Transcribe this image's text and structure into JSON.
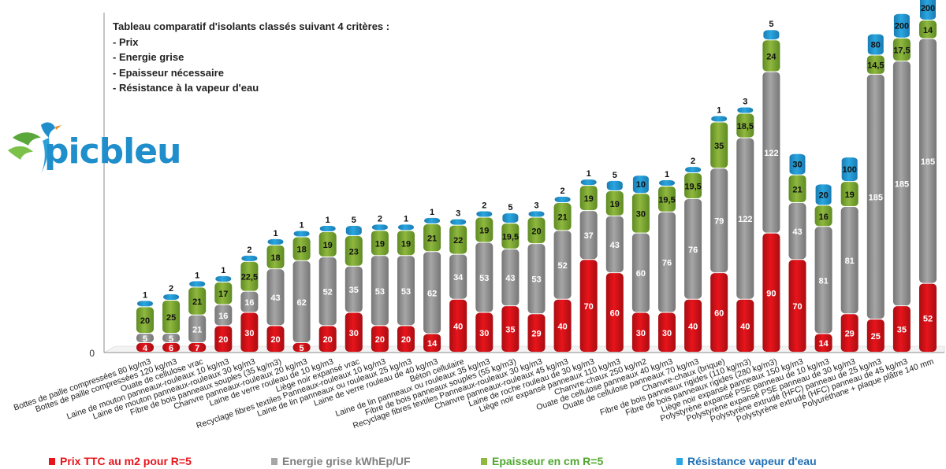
{
  "info_title": "Tableau comparatif d'isolants classés suivant 4 critères :",
  "info_lines": [
    "- Prix",
    "- Energie grise",
    "- Epaisseur nécessaire",
    "- Résistance à la vapeur d'eau"
  ],
  "logo": {
    "text": "picbleu",
    "color": "#1f8ecb"
  },
  "colors": {
    "prix": "#e8141b",
    "energie": "#a6a6a6",
    "epaisseur": "#8fb83f",
    "vapeur": "#2aa6e0"
  },
  "chart_data": {
    "type": "bar",
    "stacked": true,
    "y_tick_label": "0",
    "categories": [
      "Bottes de paille compressées 80 kg/m3",
      "Bottes de paille compressées 120 kg/m3",
      "Ouate de cellulose vrac",
      "Laine de mouton panneaux-rouleaux 10 kg/m3",
      "Laine de mouton panneaux-rouleaux 30 kg/m3",
      "Fibre de bois panneaux souples  (35 kg/m3)",
      "Chanvre panneaux-rouleaux 20 kg/m3",
      "Laine de verre rouleau de 10 kg/m3",
      "Liège noir expansé vrac",
      "Recyclage fibres textiles Panneaux-rouleaux 10 kg/m3",
      "Laine de lin panneaux ou rouleaux 25 kg/m3",
      "Laine de verre rouleau de 40 kg/m3",
      "Béton cellulaire",
      "Laine de lin panneaux ou rouleaux 35 kg/m3",
      "Fibre de bois panneaux souples  (55 kg/m3)",
      "Recyclage fibres textiles Panneaux-rouleaux 30 kg/m3",
      "Chanvre panneaux-rouleaux 45 kg/m3",
      "Laine de roche rouleau de 30 kg/m3",
      "Liège noir expansé panneaux 110 kg/m3",
      "Chanvre-chaux 250 kg/m2",
      "Ouate de cellulose panneaux 40 kg/m3",
      "Ouate de cellulose panneaux 70 kg/m3",
      "Chanvre-chaux (brique)",
      "Fibre de bois panneaux rigides (110 kg/m3)",
      "Fibre de bois panneaux rigides (280 kg/m3)",
      "Liège noir expansé panneaux 150 kg/m3",
      "Polystyrène expansé PSE panneau de 10 kg/m3",
      "Polystyrène expansé PSE panneau de 30 kg/m3",
      "Polystyrène extrudé (HFC) panneau de 25 kg/m3",
      "Polystyrène extrudé (HFC) panneau de 45 kg/m3",
      "Polyuréthane + plaque plâtre 140 mm"
    ],
    "series": [
      {
        "name": "Prix TTC au m2 pour R=5",
        "color": "#e8141b",
        "values": [
          4,
          6,
          7,
          20,
          30,
          20,
          5,
          20,
          30,
          20,
          20,
          14,
          40,
          30,
          35,
          29,
          40,
          70,
          60,
          30,
          30,
          40,
          60,
          40,
          90,
          70,
          14,
          29,
          25,
          35,
          52
        ]
      },
      {
        "name": "Energie grise kWhEp/UF",
        "color": "#a6a6a6",
        "values": [
          5,
          5,
          21,
          16,
          16,
          43,
          62,
          52,
          35,
          53,
          53,
          62,
          34,
          53,
          43,
          53,
          52,
          37,
          43,
          60,
          76,
          76,
          79,
          122,
          122,
          43,
          81,
          81,
          185,
          185,
          185
        ]
      },
      {
        "name": "Epaisseur en cm R=5",
        "color": "#8fb83f",
        "values": [
          20,
          25,
          21,
          17,
          22.5,
          18,
          18,
          19,
          23,
          19,
          19,
          21,
          22,
          19,
          19.5,
          20,
          21,
          19,
          19,
          30,
          19.5,
          19.5,
          35,
          18.5,
          24,
          21,
          16,
          19,
          14.5,
          17.5,
          14
        ]
      },
      {
        "name": "Résistance vapeur d'eau",
        "color": "#2aa6e0",
        "values": [
          1,
          2,
          1,
          1,
          2,
          1,
          1,
          1,
          5,
          2,
          1,
          1,
          3,
          2,
          5,
          3,
          2,
          1,
          5,
          10,
          1,
          2,
          1,
          3,
          5,
          30,
          20,
          100,
          80,
          200,
          200
        ]
      }
    ],
    "segment_labels": [
      [
        "4",
        "5",
        "20",
        "1"
      ],
      [
        "6",
        "5",
        "25",
        "2"
      ],
      [
        "7",
        "21",
        "21",
        "1"
      ],
      [
        "20",
        "16",
        "17",
        "1"
      ],
      [
        "30",
        "16",
        "22,5",
        "2"
      ],
      [
        "20",
        "43",
        "18",
        "1"
      ],
      [
        "5",
        "62",
        "18",
        "1"
      ],
      [
        "20",
        "52",
        "19",
        "1"
      ],
      [
        "30",
        "35",
        "23",
        "5"
      ],
      [
        "20",
        "53",
        "19",
        "2"
      ],
      [
        "20",
        "53",
        "19",
        "1"
      ],
      [
        "14",
        "62",
        "21",
        "1"
      ],
      [
        "40",
        "34",
        "22",
        "3"
      ],
      [
        "30",
        "53",
        "19",
        "2"
      ],
      [
        "35",
        "43",
        "19,5",
        "5"
      ],
      [
        "29",
        "53",
        "20",
        "3"
      ],
      [
        "40",
        "52",
        "21",
        "2"
      ],
      [
        "70",
        "37",
        "19",
        "1"
      ],
      [
        "60",
        "43",
        "19",
        "5"
      ],
      [
        "30",
        "60",
        "30",
        "10"
      ],
      [
        "30",
        "76",
        "19,5",
        "1"
      ],
      [
        "40",
        "76",
        "19,5",
        "2"
      ],
      [
        "60",
        "79",
        "35",
        "1"
      ],
      [
        "40",
        "122",
        "18,5",
        "3"
      ],
      [
        "90",
        "122",
        "24",
        "5"
      ],
      [
        "70",
        "43",
        "21",
        "30"
      ],
      [
        "14",
        "81",
        "16",
        "20"
      ],
      [
        "29",
        "81",
        "19",
        "100"
      ],
      [
        "25",
        "185",
        "14,5",
        "80"
      ],
      [
        "35",
        "185",
        "17,5",
        "200"
      ],
      [
        "52",
        "185",
        "14",
        "200"
      ]
    ],
    "legend_position": "bottom",
    "grid": false
  }
}
